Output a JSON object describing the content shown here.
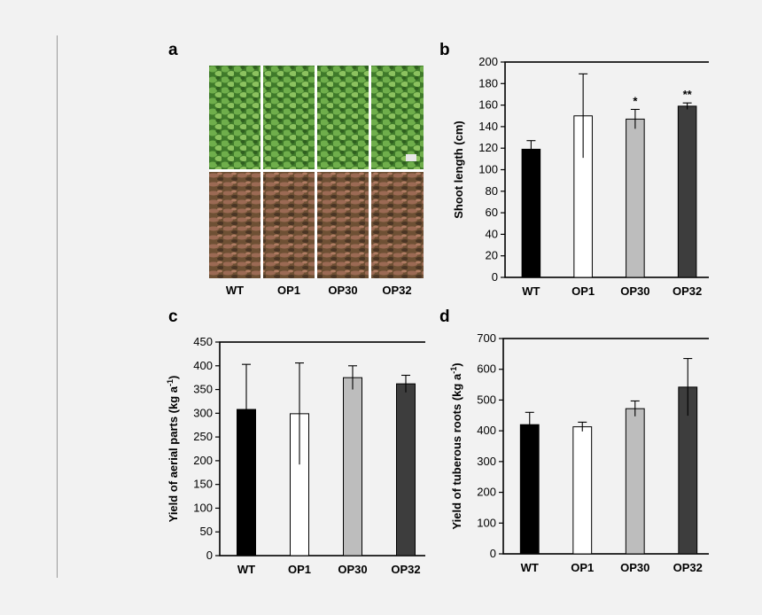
{
  "panels": {
    "a": "a",
    "b": "b",
    "c": "c",
    "d": "d"
  },
  "photo_labels": [
    "WT",
    "OP1",
    "OP30",
    "OP32"
  ],
  "colors": {
    "WT": "#000000",
    "OP1": "#ffffff",
    "OP30": "#bdbdbd",
    "OP32": "#3d3d3d",
    "foliage": "#4f8a35",
    "soil": "#6b5138"
  },
  "chart_data": [
    {
      "id": "b",
      "type": "bar",
      "categories": [
        "WT",
        "OP1",
        "OP30",
        "OP32"
      ],
      "values": [
        119,
        150,
        147,
        159
      ],
      "errors": [
        8,
        39,
        9,
        3
      ],
      "annotations": [
        "",
        "",
        "*",
        "**"
      ],
      "ylabel": "Shoot length (cm)",
      "ylim": [
        0,
        200
      ],
      "yticks": [
        0,
        20,
        40,
        60,
        80,
        100,
        120,
        140,
        160,
        180,
        200
      ]
    },
    {
      "id": "c",
      "type": "bar",
      "categories": [
        "WT",
        "OP1",
        "OP30",
        "OP32"
      ],
      "values": [
        308,
        299,
        375,
        362
      ],
      "errors": [
        95,
        107,
        25,
        18
      ],
      "annotations": [
        "",
        "",
        "",
        ""
      ],
      "ylabel": "Yield of aerial parts (kg a",
      "ylabel_sup": "-1",
      "ylabel_end": ")",
      "ylim": [
        0,
        450
      ],
      "yticks": [
        0,
        50,
        100,
        150,
        200,
        250,
        300,
        350,
        400,
        450
      ]
    },
    {
      "id": "d",
      "type": "bar",
      "categories": [
        "WT",
        "OP1",
        "OP30",
        "OP32"
      ],
      "values": [
        420,
        413,
        472,
        542
      ],
      "errors": [
        40,
        15,
        25,
        93
      ],
      "annotations": [
        "",
        "",
        "",
        ""
      ],
      "ylabel": "Yield of tuberous roots (kg a",
      "ylabel_sup": "-1",
      "ylabel_end": ")",
      "ylim": [
        0,
        700
      ],
      "yticks": [
        0,
        100,
        200,
        300,
        400,
        500,
        600,
        700
      ]
    }
  ]
}
